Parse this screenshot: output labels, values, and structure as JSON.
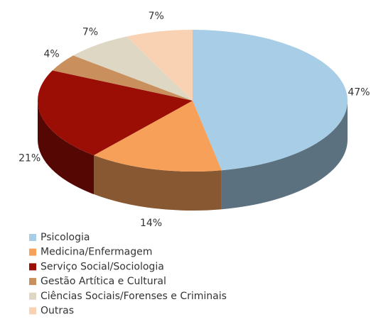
{
  "chart_data": {
    "type": "pie",
    "categories": [
      "Psicologia",
      "Medicina/Enfermagem",
      "Serviço Social/Sociologia",
      "Gestão Artítica e Cultural",
      "Ciências Sociais/Forenses e Criminais",
      "Outras"
    ],
    "values": [
      47,
      14,
      21,
      4,
      7,
      7
    ],
    "value_labels": [
      "47%",
      "14%",
      "21%",
      "4%",
      "7%",
      "7%"
    ],
    "colors": [
      "#a8cde6",
      "#f6a05a",
      "#9a0e06",
      "#c9905d",
      "#ddd7c4",
      "#f9d2b4"
    ]
  }
}
